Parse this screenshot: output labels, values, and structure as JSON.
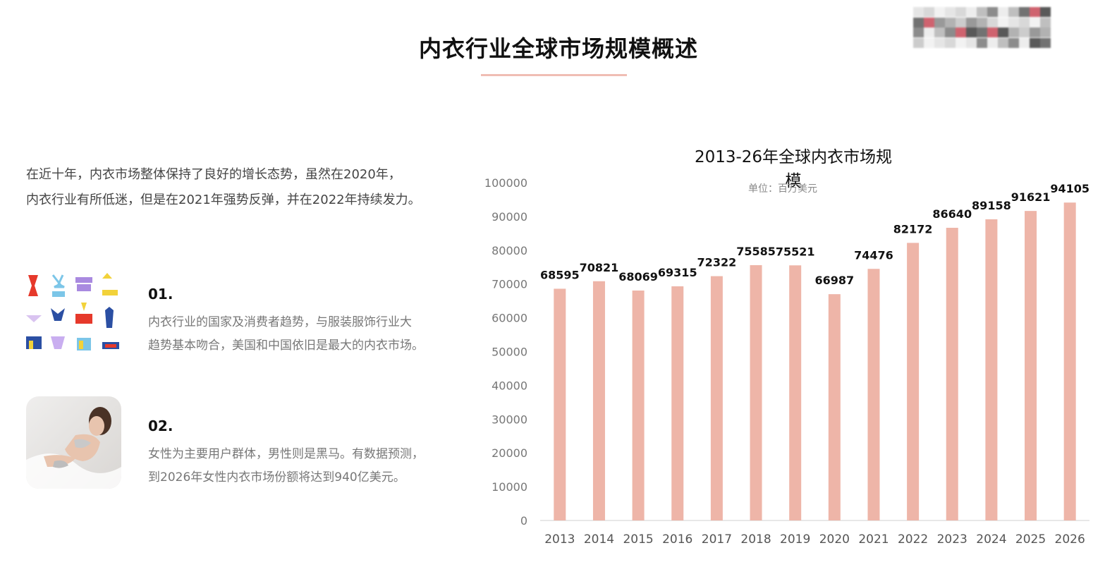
{
  "page": {
    "title": "内衣行业全球市场规模概述",
    "intro": [
      "在近十年，内衣市场整体保持了良好的增长态势，虽然在2020年，",
      "内衣行业有所低迷，但是在2021年强势反弹，并在2022年持续发力。"
    ],
    "items": [
      {
        "number": "01.",
        "text": [
          "内衣行业的国家及消费者趋势，与服装服饰行业大",
          "趋势基本吻合，美国和中国依旧是最大的内衣市场。"
        ],
        "icon": "lingerie-grid-icon"
      },
      {
        "number": "02.",
        "text": [
          "女性为主要用户群体，男性则是黑马。有数据预测，",
          "到2026年女性内衣市场份额将达到940亿美元。"
        ],
        "icon": "woman-photo"
      }
    ],
    "colors": {
      "accent": "#eeb5a8",
      "title_line": "#f0bdb4"
    }
  },
  "chart_data": {
    "type": "bar",
    "title": "2013-26年全球内衣市场规模",
    "unit_label": "单位：百万美元",
    "categories": [
      "2013",
      "2014",
      "2015",
      "2016",
      "2017",
      "2018",
      "2019",
      "2020",
      "2021",
      "2022",
      "2023",
      "2024",
      "2025",
      "2026"
    ],
    "values": [
      68595,
      70821,
      68069,
      69315,
      72322,
      75585,
      75521,
      66987,
      74476,
      82172,
      86640,
      89158,
      91621,
      94105
    ],
    "yticks": [
      0,
      10000,
      20000,
      30000,
      40000,
      50000,
      60000,
      70000,
      80000,
      90000,
      100000
    ],
    "ylim": [
      0,
      100000
    ],
    "bar_color": "#eeb5a8",
    "grid": false,
    "legend": "none"
  }
}
